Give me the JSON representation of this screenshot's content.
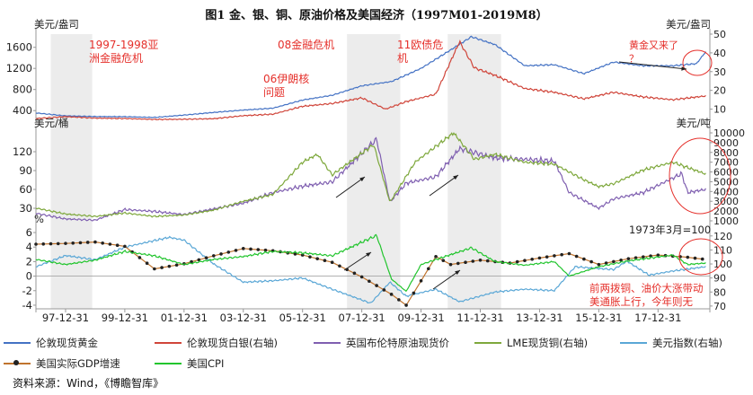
{
  "title": "图1   金、银、铜、原油价格及美国经济（1997M01-2019M8）",
  "source": "资料来源：Wind，《博瞻智库》",
  "colors": {
    "gold": "#4472c4",
    "silver": "#d0453a",
    "brent": "#7f5fb0",
    "copper": "#7ea83c",
    "usd": "#5aa7d6",
    "gdp": "#c0742e",
    "cpi": "#22c52e",
    "shade": "#ececec",
    "annotation": "#e5302b"
  },
  "chart_data": [
    {
      "type": "line",
      "title": "",
      "x": [
        "97-12-31",
        "99-12-31",
        "01-12-31",
        "03-12-31",
        "05-12-31",
        "07-12-31",
        "09-12-31",
        "11-12-31",
        "13-12-31",
        "15-12-31",
        "17-12-31"
      ],
      "left_axis": {
        "label": "美元/盎司",
        "ticks": [
          400,
          800,
          1200,
          1600
        ]
      },
      "right_axis": {
        "label": "美元/盎司",
        "ticks": [
          10,
          20,
          30,
          40,
          50
        ]
      },
      "series": [
        {
          "name": "伦敦现货黄金",
          "axis": "left",
          "color": "gold",
          "values": [
            [
              1997.0,
              355
            ],
            [
              1998.0,
              300
            ],
            [
              1999.0,
              288
            ],
            [
              2000.0,
              285
            ],
            [
              2001.0,
              270
            ],
            [
              2002.0,
              315
            ],
            [
              2003.0,
              365
            ],
            [
              2004.0,
              410
            ],
            [
              2005.0,
              445
            ],
            [
              2006.0,
              600
            ],
            [
              2007.0,
              690
            ],
            [
              2008.0,
              870
            ],
            [
              2009.0,
              950
            ],
            [
              2010.0,
              1200
            ],
            [
              2011.0,
              1550
            ],
            [
              2011.7,
              1800
            ],
            [
              2012.5,
              1650
            ],
            [
              2013.5,
              1250
            ],
            [
              2014.5,
              1270
            ],
            [
              2015.5,
              1100
            ],
            [
              2016.5,
              1320
            ],
            [
              2017.5,
              1250
            ],
            [
              2018.5,
              1250
            ],
            [
              2019.3,
              1290
            ],
            [
              2019.6,
              1510
            ]
          ]
        },
        {
          "name": "伦敦现货白银(右轴)",
          "axis": "right",
          "color": "silver",
          "values": [
            [
              1997.0,
              5.0
            ],
            [
              1998.0,
              6.0
            ],
            [
              1999.0,
              5.2
            ],
            [
              2000.0,
              5.0
            ],
            [
              2001.0,
              4.5
            ],
            [
              2002.0,
              4.6
            ],
            [
              2003.0,
              4.9
            ],
            [
              2004.0,
              6.5
            ],
            [
              2005.0,
              7.3
            ],
            [
              2006.0,
              11.5
            ],
            [
              2007.0,
              13.0
            ],
            [
              2008.0,
              16.0
            ],
            [
              2008.8,
              10.0
            ],
            [
              2009.5,
              14.0
            ],
            [
              2010.5,
              18.0
            ],
            [
              2011.3,
              46.0
            ],
            [
              2011.8,
              32.0
            ],
            [
              2012.5,
              28.0
            ],
            [
              2013.5,
              21.0
            ],
            [
              2014.5,
              19.0
            ],
            [
              2015.5,
              15.5
            ],
            [
              2016.5,
              19.0
            ],
            [
              2017.5,
              16.5
            ],
            [
              2018.5,
              15.0
            ],
            [
              2019.6,
              17.0
            ]
          ]
        }
      ]
    },
    {
      "type": "line",
      "title": "",
      "left_axis": {
        "label": "美元/桶",
        "ticks": [
          30,
          60,
          90,
          120
        ]
      },
      "right_axis": {
        "label": "美元/吨",
        "ticks": [
          1000,
          2000,
          3000,
          4000,
          5000,
          6000,
          7000,
          8000,
          9000,
          10000
        ]
      },
      "series": [
        {
          "name": "英国布伦特原油现货价",
          "axis": "left",
          "color": "brent",
          "values": [
            [
              1997.0,
              22
            ],
            [
              1998.0,
              13
            ],
            [
              1999.0,
              11
            ],
            [
              2000.0,
              28
            ],
            [
              2001.0,
              25
            ],
            [
              2002.0,
              20
            ],
            [
              2003.0,
              29
            ],
            [
              2004.0,
              38
            ],
            [
              2005.0,
              55
            ],
            [
              2006.0,
              65
            ],
            [
              2007.0,
              72
            ],
            [
              2008.5,
              140
            ],
            [
              2008.95,
              40
            ],
            [
              2009.5,
              70
            ],
            [
              2010.5,
              80
            ],
            [
              2011.3,
              125
            ],
            [
              2012.5,
              110
            ],
            [
              2013.5,
              108
            ],
            [
              2014.5,
              105
            ],
            [
              2015.0,
              55
            ],
            [
              2016.0,
              30
            ],
            [
              2016.5,
              45
            ],
            [
              2017.5,
              55
            ],
            [
              2018.8,
              85
            ],
            [
              2019.0,
              55
            ],
            [
              2019.6,
              60
            ]
          ]
        },
        {
          "name": "LME现货铜(右轴)",
          "axis": "right",
          "color": "copper",
          "values": [
            [
              1997.0,
              2300
            ],
            [
              1998.0,
              1700
            ],
            [
              1999.0,
              1450
            ],
            [
              2000.0,
              1800
            ],
            [
              2001.0,
              1450
            ],
            [
              2002.0,
              1600
            ],
            [
              2003.0,
              2100
            ],
            [
              2004.0,
              3000
            ],
            [
              2005.0,
              3700
            ],
            [
              2006.0,
              7000
            ],
            [
              2006.5,
              7800
            ],
            [
              2007.0,
              5700
            ],
            [
              2008.4,
              8800
            ],
            [
              2008.95,
              2900
            ],
            [
              2009.8,
              7000
            ],
            [
              2011.1,
              10000
            ],
            [
              2011.8,
              7300
            ],
            [
              2012.5,
              7800
            ],
            [
              2013.5,
              7000
            ],
            [
              2014.5,
              6800
            ],
            [
              2015.5,
              5200
            ],
            [
              2016.0,
              4500
            ],
            [
              2016.5,
              4800
            ],
            [
              2017.5,
              6200
            ],
            [
              2018.5,
              7000
            ],
            [
              2019.6,
              5800
            ]
          ]
        }
      ]
    },
    {
      "type": "line",
      "title": "",
      "left_axis": {
        "label": "%",
        "ticks": [
          -4,
          -2,
          0,
          2,
          4,
          6
        ]
      },
      "right_axis": {
        "label": "",
        "ticks": [
          70,
          80,
          90,
          100,
          110,
          120
        ]
      },
      "series": [
        {
          "name": "美元指数(右轴)",
          "axis": "right",
          "color": "usd",
          "values": [
            [
              1997.0,
              98
            ],
            [
              1998.0,
              106
            ],
            [
              1999.0,
              103
            ],
            [
              2000.0,
              112
            ],
            [
              2001.5,
              119
            ],
            [
              2002.0,
              117
            ],
            [
              2003.0,
              100
            ],
            [
              2004.0,
              87
            ],
            [
              2005.0,
              88
            ],
            [
              2006.0,
              90
            ],
            [
              2007.0,
              82
            ],
            [
              2008.3,
              72
            ],
            [
              2008.95,
              87
            ],
            [
              2009.5,
              77
            ],
            [
              2010.5,
              82
            ],
            [
              2011.3,
              73
            ],
            [
              2012.5,
              80
            ],
            [
              2013.5,
              82
            ],
            [
              2014.5,
              81
            ],
            [
              2015.2,
              98
            ],
            [
              2016.5,
              96
            ],
            [
              2016.95,
              102
            ],
            [
              2017.7,
              92
            ],
            [
              2018.5,
              95
            ],
            [
              2019.6,
              98
            ]
          ]
        },
        {
          "name": "美国实际GDP增速",
          "axis": "left",
          "color": "gdp",
          "values": [
            [
              1997.0,
              4.4
            ],
            [
              1998.0,
              4.5
            ],
            [
              1999.0,
              4.7
            ],
            [
              2000.0,
              4.1
            ],
            [
              2001.0,
              1.0
            ],
            [
              2002.0,
              1.7
            ],
            [
              2003.0,
              2.8
            ],
            [
              2004.0,
              3.8
            ],
            [
              2005.0,
              3.5
            ],
            [
              2006.0,
              2.9
            ],
            [
              2007.0,
              1.9
            ],
            [
              2008.0,
              -0.1
            ],
            [
              2009.0,
              -2.5
            ],
            [
              2009.5,
              -4.0
            ],
            [
              2010.5,
              2.7
            ],
            [
              2011.0,
              1.6
            ],
            [
              2012.0,
              2.2
            ],
            [
              2013.0,
              1.8
            ],
            [
              2014.0,
              2.5
            ],
            [
              2015.0,
              3.1
            ],
            [
              2016.0,
              1.6
            ],
            [
              2017.0,
              2.4
            ],
            [
              2018.0,
              2.9
            ],
            [
              2019.0,
              2.6
            ],
            [
              2019.6,
              2.3
            ]
          ]
        },
        {
          "name": "美国CPI",
          "axis": "left",
          "color": "cpi",
          "values": [
            [
              1997.0,
              2.3
            ],
            [
              1998.0,
              1.6
            ],
            [
              1999.0,
              2.2
            ],
            [
              2000.0,
              3.4
            ],
            [
              2001.0,
              2.8
            ],
            [
              2002.0,
              1.6
            ],
            [
              2003.0,
              2.3
            ],
            [
              2004.0,
              2.7
            ],
            [
              2005.0,
              3.4
            ],
            [
              2006.0,
              3.2
            ],
            [
              2007.0,
              2.8
            ],
            [
              2008.5,
              5.6
            ],
            [
              2009.0,
              -0.4
            ],
            [
              2009.5,
              -2.1
            ],
            [
              2010.0,
              1.6
            ],
            [
              2011.7,
              3.9
            ],
            [
              2012.5,
              2.0
            ],
            [
              2013.5,
              1.5
            ],
            [
              2014.5,
              2.0
            ],
            [
              2015.0,
              0.0
            ],
            [
              2016.0,
              1.3
            ],
            [
              2017.0,
              2.1
            ],
            [
              2018.5,
              2.9
            ],
            [
              2019.0,
              1.6
            ],
            [
              2019.6,
              1.8
            ]
          ]
        }
      ]
    }
  ],
  "shaded_periods": [
    [
      1997.5,
      1998.9
    ],
    [
      2007.5,
      2009.3
    ],
    [
      2010.9,
      2012.7
    ]
  ],
  "annotations": {
    "asian_crisis": [
      "1997-1998亚",
      "洲金融危机"
    ],
    "iran_nuclear": [
      "06伊朗核",
      "问题"
    ],
    "crisis_08": [
      "08金融危机"
    ],
    "euro_crisis": [
      "11欧债危",
      "机"
    ],
    "gold_back": [
      "黄金又来了",
      "？"
    ],
    "base_note": [
      "1973年3月=100"
    ],
    "copper_oil_note": [
      "前两拨铜、油价大涨带动",
      "美通胀上行，今年则无"
    ]
  },
  "legend": [
    {
      "label": "伦敦现货黄金",
      "color": "gold",
      "marker": false
    },
    {
      "label": "伦敦现货白银(右轴)",
      "color": "silver",
      "marker": false
    },
    {
      "label": "英国布伦特原油现货价",
      "color": "brent",
      "marker": false
    },
    {
      "label": "LME现货铜(右轴)",
      "color": "copper",
      "marker": false
    },
    {
      "label": "美元指数(右轴)",
      "color": "usd",
      "marker": false
    },
    {
      "label": "美国实际GDP增速",
      "color": "gdp",
      "marker": true
    },
    {
      "label": "美国CPI",
      "color": "cpi",
      "marker": false
    }
  ]
}
